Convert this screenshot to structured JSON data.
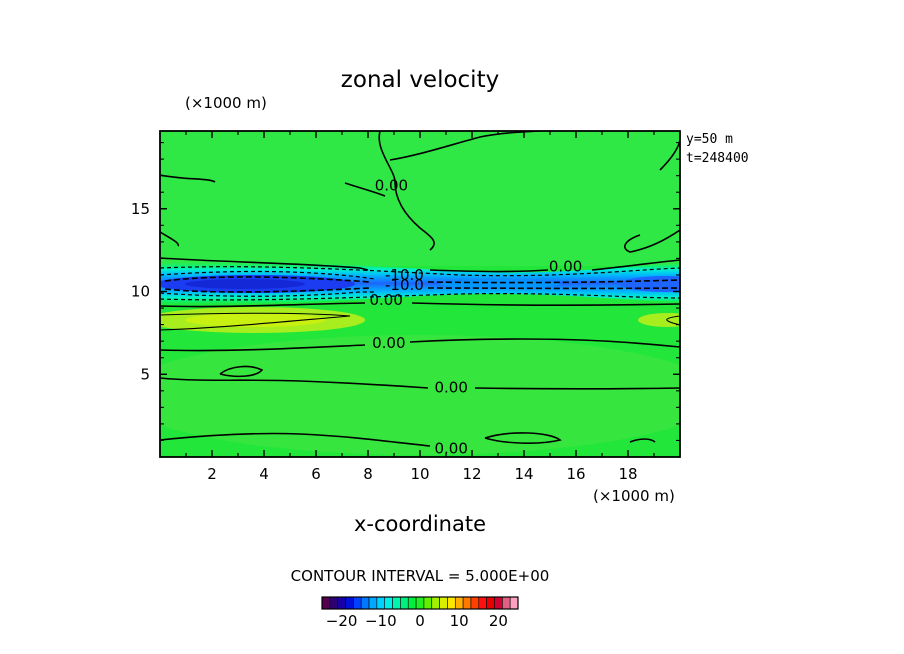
{
  "chart_data": {
    "type": "heatmap",
    "title": "zonal velocity",
    "xlabel": "x-coordinate",
    "x_unit": "(×1000 m)",
    "y_unit": "(×1000 m)",
    "xlim": [
      0,
      20
    ],
    "ylim": [
      0,
      19.7
    ],
    "x_ticks": [
      2,
      4,
      6,
      8,
      10,
      12,
      14,
      16,
      18
    ],
    "y_ticks": [
      5,
      10,
      15
    ],
    "info_lines": [
      "y=50 m",
      "t=248400"
    ],
    "contour_interval_text": "CONTOUR INTERVAL = 5.000E+00",
    "contour_labels": [
      {
        "text": "0.00",
        "x": 8.9,
        "y": 16.4
      },
      {
        "text": "0.00",
        "x": 15.6,
        "y": 11.5
      },
      {
        "text": "-10.0",
        "x": 9.4,
        "y": 11.0
      },
      {
        "text": "-10.0",
        "x": 9.4,
        "y": 10.4
      },
      {
        "text": "0.00",
        "x": 8.7,
        "y": 9.5
      },
      {
        "text": "0.00",
        "x": 8.8,
        "y": 6.9
      },
      {
        "text": "0.00",
        "x": 11.2,
        "y": 4.2
      },
      {
        "text": "0.00",
        "x": 11.2,
        "y": 0.5
      }
    ],
    "field_summary": {
      "background_value": 0,
      "jet_center_y": 10.6,
      "jet_min_value": -22,
      "secondary_max_y": 8.2,
      "secondary_max_value": 3
    },
    "colorbar": {
      "range": [
        -25,
        25
      ],
      "tick_labels": [
        "−20",
        "−10",
        "0",
        "10",
        "20"
      ],
      "tick_values": [
        -20,
        -10,
        0,
        10,
        20
      ],
      "colors": [
        "#55004f",
        "#2f0071",
        "#1800a6",
        "#0010d6",
        "#0040ff",
        "#0078ff",
        "#00a8ff",
        "#00d2ff",
        "#00f0e8",
        "#00f5b0",
        "#00f080",
        "#00f040",
        "#20f020",
        "#60f000",
        "#a0f000",
        "#d8f000",
        "#ffe600",
        "#ffb000",
        "#ff7800",
        "#ff4000",
        "#ff1010",
        "#e80000",
        "#d00030",
        "#e06080",
        "#ffa0c0"
      ]
    }
  }
}
